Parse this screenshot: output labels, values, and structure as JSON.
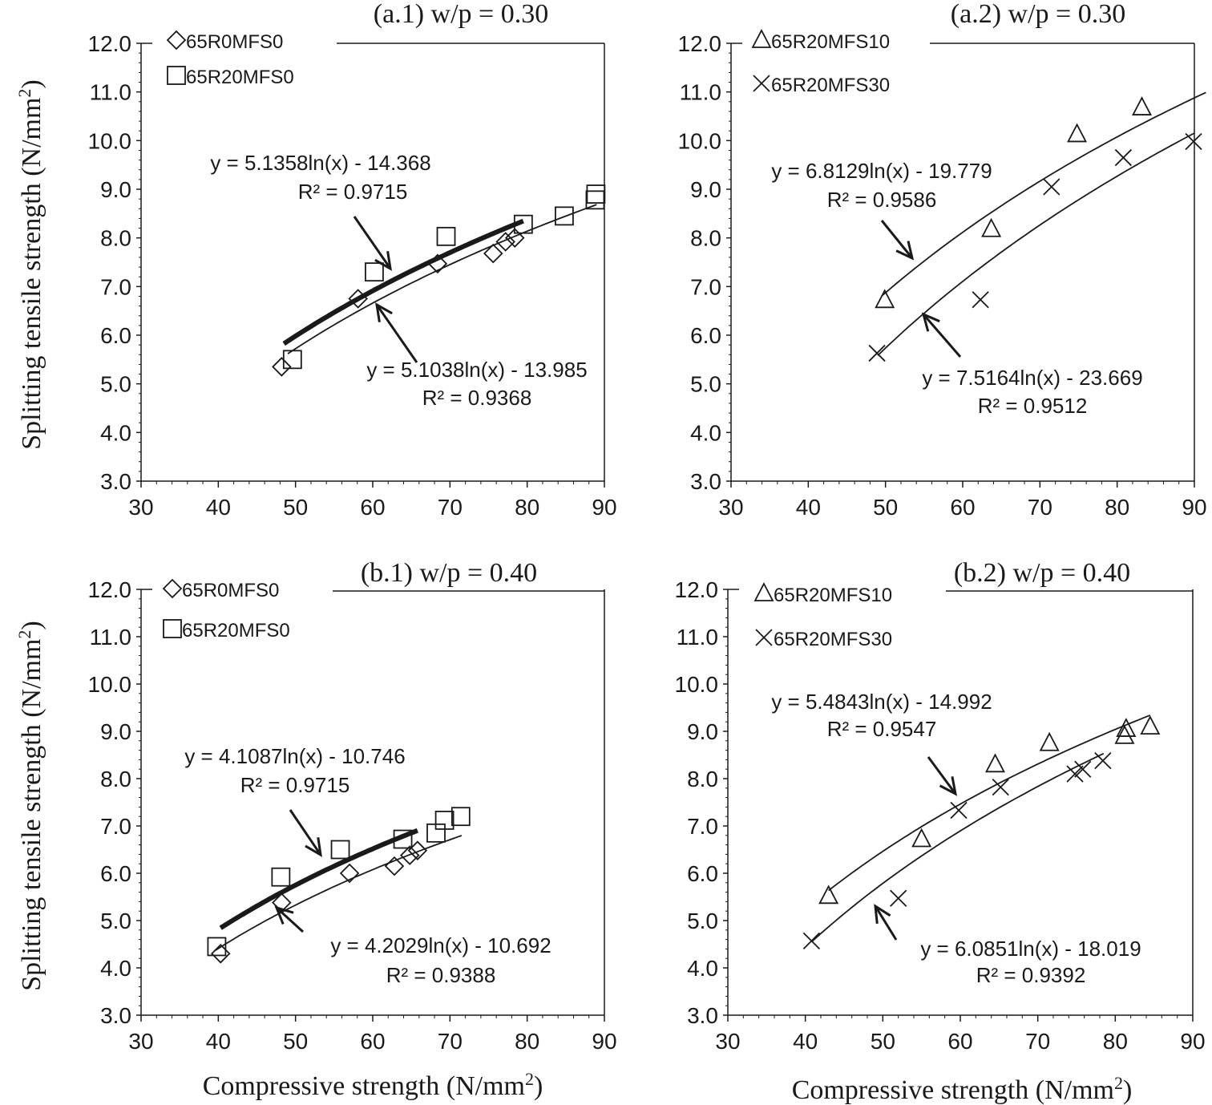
{
  "axis_labels": {
    "y": "Splitting tensile strength (N/mm",
    "y_sup": "2",
    "y_end": ")",
    "x": "Compressive strength (N/mm",
    "x_sup": "2",
    "x_end": ")"
  },
  "chart_data": [
    {
      "id": "a1",
      "type": "scatter",
      "title": "(a.1) w/p = 0.30",
      "xlim": [
        30,
        90
      ],
      "ylim": [
        3.0,
        12.0
      ],
      "x_ticks": [
        "30",
        "40",
        "50",
        "60",
        "70",
        "80",
        "90"
      ],
      "y_ticks": [
        "3.0",
        "4.0",
        "5.0",
        "6.0",
        "7.0",
        "8.0",
        "9.0",
        "10.0",
        "11.0",
        "12.0"
      ],
      "series": [
        {
          "name": "65R0MFS0",
          "marker": "diamond",
          "x": [
            48.2,
            58.1,
            68.4,
            75.6,
            77.2,
            78.4
          ],
          "y": [
            5.35,
            6.75,
            7.47,
            7.68,
            7.92,
            8.0
          ],
          "fit": {
            "a": 5.1038,
            "b": -13.985,
            "r2": 0.9368,
            "x_from": 48.5,
            "x_to": 79.5,
            "bold": true
          }
        },
        {
          "name": "65R20MFS0",
          "marker": "square",
          "x": [
            49.6,
            60.2,
            69.5,
            79.5,
            84.8,
            88.8,
            88.9
          ],
          "y": [
            5.5,
            7.3,
            8.03,
            8.28,
            8.45,
            8.78,
            8.9
          ],
          "fit": {
            "a": 5.1358,
            "b": -14.368,
            "r2": 0.9715,
            "x_from": 49.0,
            "x_to": 89.0,
            "bold": false
          }
        }
      ],
      "equations": [
        {
          "line1": "y = 5.1358ln(x) - 14.368",
          "line2": "R² = 0.9715"
        },
        {
          "line1": "y = 5.1038ln(x) - 13.985",
          "line2": "R² = 0.9368"
        }
      ]
    },
    {
      "id": "a2",
      "type": "scatter",
      "title": "(a.2) w/p = 0.30",
      "xlim": [
        30,
        90
      ],
      "ylim": [
        3.0,
        12.0
      ],
      "x_ticks": [
        "30",
        "40",
        "50",
        "60",
        "70",
        "80",
        "90"
      ],
      "y_ticks": [
        "3.0",
        "4.0",
        "5.0",
        "6.0",
        "7.0",
        "8.0",
        "9.0",
        "10.0",
        "11.0",
        "12.0"
      ],
      "series": [
        {
          "name": "65R20MFS10",
          "marker": "triangle",
          "x": [
            49.9,
            63.7,
            74.8,
            83.2
          ],
          "y": [
            6.72,
            8.18,
            10.13,
            10.68
          ],
          "fit": {
            "a": 6.8129,
            "b": -19.779,
            "r2": 0.9586,
            "x_from": 49.5,
            "x_to": 91.5,
            "bold": false
          }
        },
        {
          "name": "65R20MFS30",
          "marker": "cross",
          "x": [
            48.9,
            62.3,
            71.5,
            80.8,
            89.9
          ],
          "y": [
            5.63,
            6.73,
            9.05,
            9.65,
            9.98
          ],
          "fit": {
            "a": 7.5164,
            "b": -23.669,
            "r2": 0.9512,
            "x_from": 49.0,
            "x_to": 90.0,
            "bold": false
          }
        }
      ],
      "equations": [
        {
          "line1": "y = 6.8129ln(x) - 19.779",
          "line2": "R² = 0.9586"
        },
        {
          "line1": "y = 7.5164ln(x) - 23.669",
          "line2": "R² = 0.9512"
        }
      ]
    },
    {
      "id": "b1",
      "type": "scatter",
      "title": "(b.1) w/p = 0.40",
      "xlim": [
        30,
        90
      ],
      "ylim": [
        3.0,
        12.0
      ],
      "x_ticks": [
        "30",
        "40",
        "50",
        "60",
        "70",
        "80",
        "90"
      ],
      "y_ticks": [
        "3.0",
        "4.0",
        "5.0",
        "6.0",
        "7.0",
        "8.0",
        "9.0",
        "10.0",
        "11.0",
        "12.0"
      ],
      "series": [
        {
          "name": "65R0MFS0",
          "marker": "diamond",
          "x": [
            40.3,
            48.2,
            57.0,
            62.8,
            64.8,
            65.8
          ],
          "y": [
            4.3,
            5.38,
            6.0,
            6.15,
            6.38,
            6.48
          ],
          "fit": {
            "a": 4.2029,
            "b": -10.692,
            "r2": 0.9388,
            "x_from": 40.3,
            "x_to": 65.8,
            "bold": true
          }
        },
        {
          "name": "65R20MFS0",
          "marker": "square",
          "x": [
            39.8,
            48.1,
            55.8,
            63.9,
            68.2,
            69.3,
            71.4
          ],
          "y": [
            4.45,
            5.92,
            6.5,
            6.72,
            6.85,
            7.12,
            7.2
          ],
          "fit": {
            "a": 4.1087,
            "b": -10.746,
            "r2": 0.9715,
            "x_from": 39.5,
            "x_to": 71.5,
            "bold": false
          }
        }
      ],
      "equations": [
        {
          "line1": "y = 4.1087ln(x) - 10.746",
          "line2": "R² = 0.9715"
        },
        {
          "line1": "y = 4.2029ln(x) - 10.692",
          "line2": "R² = 0.9388"
        }
      ]
    },
    {
      "id": "b2",
      "type": "scatter",
      "title": "(b.2) w/p = 0.40",
      "xlim": [
        30,
        90
      ],
      "ylim": [
        3.0,
        12.0
      ],
      "x_ticks": [
        "30",
        "40",
        "50",
        "60",
        "70",
        "80",
        "90"
      ],
      "y_ticks": [
        "3.0",
        "4.0",
        "5.0",
        "6.0",
        "7.0",
        "8.0",
        "9.0",
        "10.0",
        "11.0",
        "12.0"
      ],
      "series": [
        {
          "name": "65R20MFS10",
          "marker": "triangle",
          "x": [
            43.0,
            55.0,
            64.5,
            71.5,
            81.2,
            81.4,
            84.5
          ],
          "y": [
            5.52,
            6.72,
            8.3,
            8.75,
            8.9,
            9.05,
            9.1
          ],
          "fit": {
            "a": 5.4843,
            "b": -14.992,
            "r2": 0.9547,
            "x_from": 43.0,
            "x_to": 84.5,
            "bold": false
          }
        },
        {
          "name": "65R20MFS30",
          "marker": "cross",
          "x": [
            40.8,
            52.0,
            59.8,
            65.2,
            74.8,
            75.8,
            78.4
          ],
          "y": [
            4.57,
            5.47,
            7.33,
            7.82,
            8.1,
            8.2,
            8.38
          ],
          "fit": {
            "a": 6.0851,
            "b": -18.019,
            "r2": 0.9392,
            "x_from": 40.8,
            "x_to": 78.5,
            "bold": false
          }
        }
      ],
      "equations": [
        {
          "line1": "y = 5.4843ln(x) - 14.992",
          "line2": "R² = 0.9547"
        },
        {
          "line1": "y = 6.0851ln(x) - 18.019",
          "line2": "R² = 0.9392"
        }
      ]
    }
  ]
}
